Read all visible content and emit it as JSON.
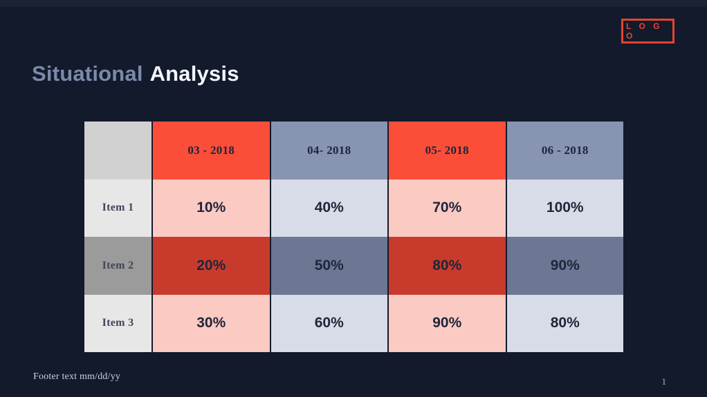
{
  "slide": {
    "title": {
      "part1": "Situational",
      "part2": "Analysis"
    },
    "logo": {
      "label": "L O G O"
    },
    "footer": {
      "text": "Footer text mm/dd/yy",
      "page_number": "1"
    }
  },
  "table": {
    "corner_label": "",
    "columns": [
      "03 - 2018",
      "04- 2018",
      "05- 2018",
      "06 - 2018"
    ],
    "rows": [
      {
        "label": "Item 1",
        "values": [
          "10%",
          "40%",
          "70%",
          "100%"
        ]
      },
      {
        "label": "Item 2",
        "values": [
          "20%",
          "50%",
          "80%",
          "90%"
        ]
      },
      {
        "label": "Item 3",
        "values": [
          "30%",
          "60%",
          "90%",
          "80%"
        ]
      }
    ]
  },
  "palette": {
    "background": "#121a2c",
    "title_muted": "#7b8aa9",
    "title_bright": "#f3f5f9",
    "logo_red": "#e8432f",
    "header_red": "#fa4e39",
    "header_blue": "#8794b2",
    "cell_pink": "#fbcac3",
    "cell_lavender": "#d8dce8",
    "cell_dark_red": "#c83b2c",
    "cell_dark_blue": "#6d7793",
    "label_gray_header": "#d1d1d1",
    "label_gray_light": "#e7e7e7",
    "label_gray_mid": "#9b9b9b",
    "cell_text": "#20253a"
  },
  "chart_data": {
    "type": "table",
    "title": "Situational Analysis",
    "categories": [
      "03 - 2018",
      "04- 2018",
      "05- 2018",
      "06 - 2018"
    ],
    "series": [
      {
        "name": "Item 1",
        "values": [
          10,
          40,
          70,
          100
        ]
      },
      {
        "name": "Item 2",
        "values": [
          20,
          50,
          80,
          90
        ]
      },
      {
        "name": "Item 3",
        "values": [
          30,
          60,
          90,
          80
        ]
      }
    ],
    "unit": "%"
  }
}
